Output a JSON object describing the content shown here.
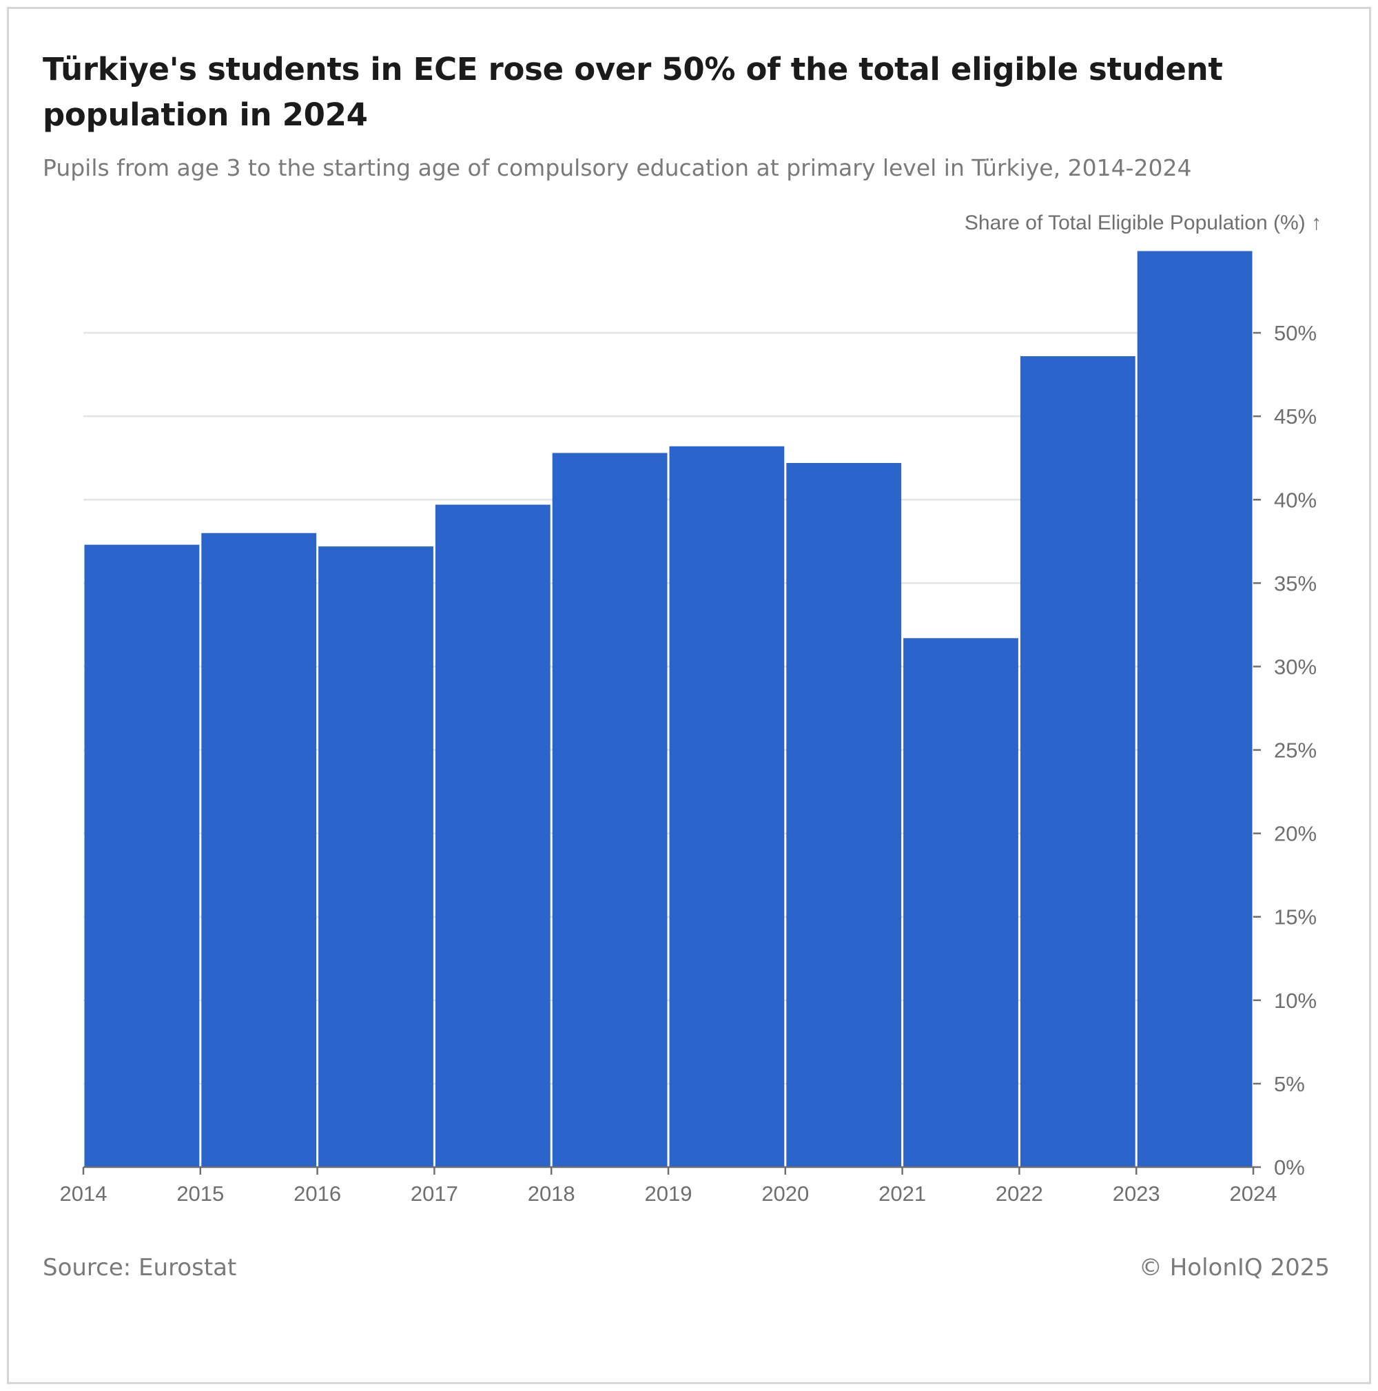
{
  "header": {
    "title": "Türkiye's students in ECE rose over 50% of the total eligible student population in 2024",
    "subtitle": "Pupils from age 3 to the starting age of compulsory education at primary level in Türkiye, 2014-2024"
  },
  "footer": {
    "source": "Source: Eurostat",
    "credit": "© HolonIQ 2025"
  },
  "colors": {
    "bar": "#2b65cc",
    "grid": "#e4e4e4",
    "axis": "#6f6f6f",
    "text_dark": "#1b1b1b",
    "text_muted": "#7a7a7a"
  },
  "chart_data": {
    "type": "bar",
    "title": "Türkiye's students in ECE rose over 50% of the total eligible student population in 2024",
    "subtitle": "Pupils from age 3 to the starting age of compulsory education at primary level in Türkiye, 2014-2024",
    "ylabel": "Share of Total Eligible Population (%) ↑",
    "y_axis_side": "right",
    "x_edges": [
      "2014",
      "2015",
      "2016",
      "2017",
      "2018",
      "2019",
      "2020",
      "2021",
      "2022",
      "2023",
      "2024"
    ],
    "categories": [
      "2014",
      "2015",
      "2016",
      "2017",
      "2018",
      "2019",
      "2020",
      "2021",
      "2022",
      "2023"
    ],
    "values": [
      37.3,
      38.0,
      37.2,
      39.7,
      42.8,
      43.2,
      42.2,
      31.7,
      48.6,
      54.9
    ],
    "ylim": [
      0,
      55
    ],
    "yticks": [
      0,
      5,
      10,
      15,
      20,
      25,
      30,
      35,
      40,
      45,
      50
    ],
    "ytick_labels": [
      "0%",
      "5%",
      "10%",
      "15%",
      "20%",
      "25%",
      "30%",
      "35%",
      "40%",
      "45%",
      "50%"
    ],
    "grid": true
  }
}
